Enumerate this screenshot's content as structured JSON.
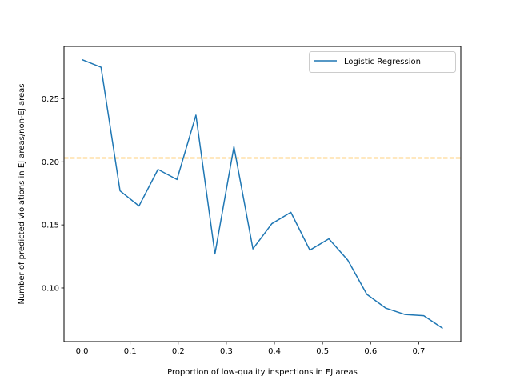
{
  "chart_data": {
    "type": "line",
    "title": "",
    "xlabel": "Proportion of low-quality inspections in EJ areas",
    "ylabel": "Number of predicted violations in EJ areas/non-EJ areas",
    "xlim": [
      -0.0375,
      0.7875
    ],
    "ylim": [
      0.0575,
      0.2915
    ],
    "xticks": [
      0.0,
      0.1,
      0.2,
      0.3,
      0.4,
      0.5,
      0.6,
      0.7
    ],
    "xtick_labels": [
      "0.0",
      "0.1",
      "0.2",
      "0.3",
      "0.4",
      "0.5",
      "0.6",
      "0.7"
    ],
    "yticks": [
      0.1,
      0.15,
      0.2,
      0.25
    ],
    "ytick_labels": [
      "0.10",
      "0.15",
      "0.20",
      "0.25"
    ],
    "grid": false,
    "legend_position": "upper right",
    "series": [
      {
        "name": "Logistic Regression",
        "color": "#1f77b4",
        "line_style": "solid",
        "x": [
          0.0,
          0.0395,
          0.079,
          0.1184,
          0.1579,
          0.1974,
          0.2368,
          0.2763,
          0.3158,
          0.3553,
          0.3947,
          0.4342,
          0.4737,
          0.5132,
          0.5526,
          0.5921,
          0.6316,
          0.6711,
          0.7105,
          0.75
        ],
        "y": [
          0.281,
          0.275,
          0.177,
          0.165,
          0.194,
          0.186,
          0.237,
          0.127,
          0.212,
          0.131,
          0.151,
          0.16,
          0.13,
          0.139,
          0.122,
          0.095,
          0.084,
          0.079,
          0.078,
          0.068
        ]
      }
    ],
    "reference_lines": [
      {
        "orientation": "horizontal",
        "y": 0.203,
        "color": "#ffa500",
        "line_style": "dashed"
      }
    ]
  }
}
